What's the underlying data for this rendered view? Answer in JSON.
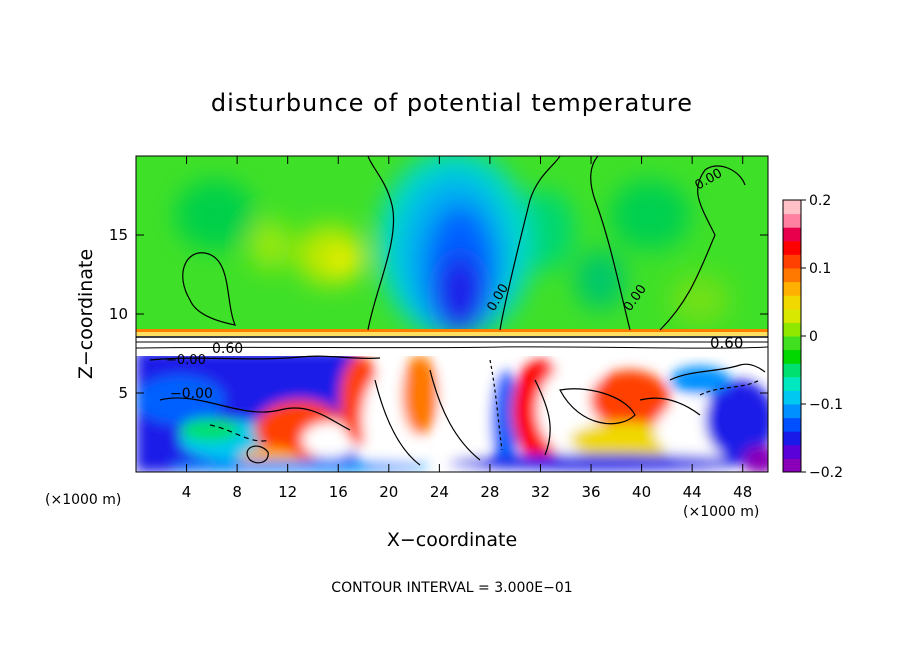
{
  "chart_data": {
    "type": "heatmap",
    "title": "disturbunce of potential temperature",
    "xlabel": "X−coordinate",
    "ylabel": "Z−coordinate",
    "x_unit_left": "(×1000 m)",
    "x_unit_right": "(×1000 m)",
    "xlim": [
      0,
      50
    ],
    "ylim": [
      0,
      20
    ],
    "x_ticks": [
      4,
      8,
      12,
      16,
      20,
      24,
      28,
      32,
      36,
      40,
      44,
      48
    ],
    "y_ticks": [
      5,
      10,
      15
    ],
    "colorbar": {
      "range": [
        -0.2,
        0.2
      ],
      "tick_values": [
        0.2,
        0.1,
        0,
        -0.1,
        -0.2
      ],
      "tick_labels": [
        "0.2",
        "0.1",
        "0",
        "−0.1",
        "−0.2"
      ],
      "colors": [
        "#8a00b8",
        "#5a00d8",
        "#1a1ae8",
        "#0050ff",
        "#0090ff",
        "#00c8f0",
        "#00e8c0",
        "#00e070",
        "#00d800",
        "#40e020",
        "#90e800",
        "#d8e800",
        "#f0d800",
        "#ffb000",
        "#ff7800",
        "#ff4000",
        "#ff0000",
        "#e8004c",
        "#ff80a0",
        "#ffc0c8"
      ]
    },
    "contour_labels": [
      "0.00",
      "0.00",
      "0.00",
      "0.60",
      "0.60",
      "−0.00",
      "−0.00"
    ],
    "footer": "CONTOUR INTERVAL = 3.000E−01",
    "grid": false
  }
}
